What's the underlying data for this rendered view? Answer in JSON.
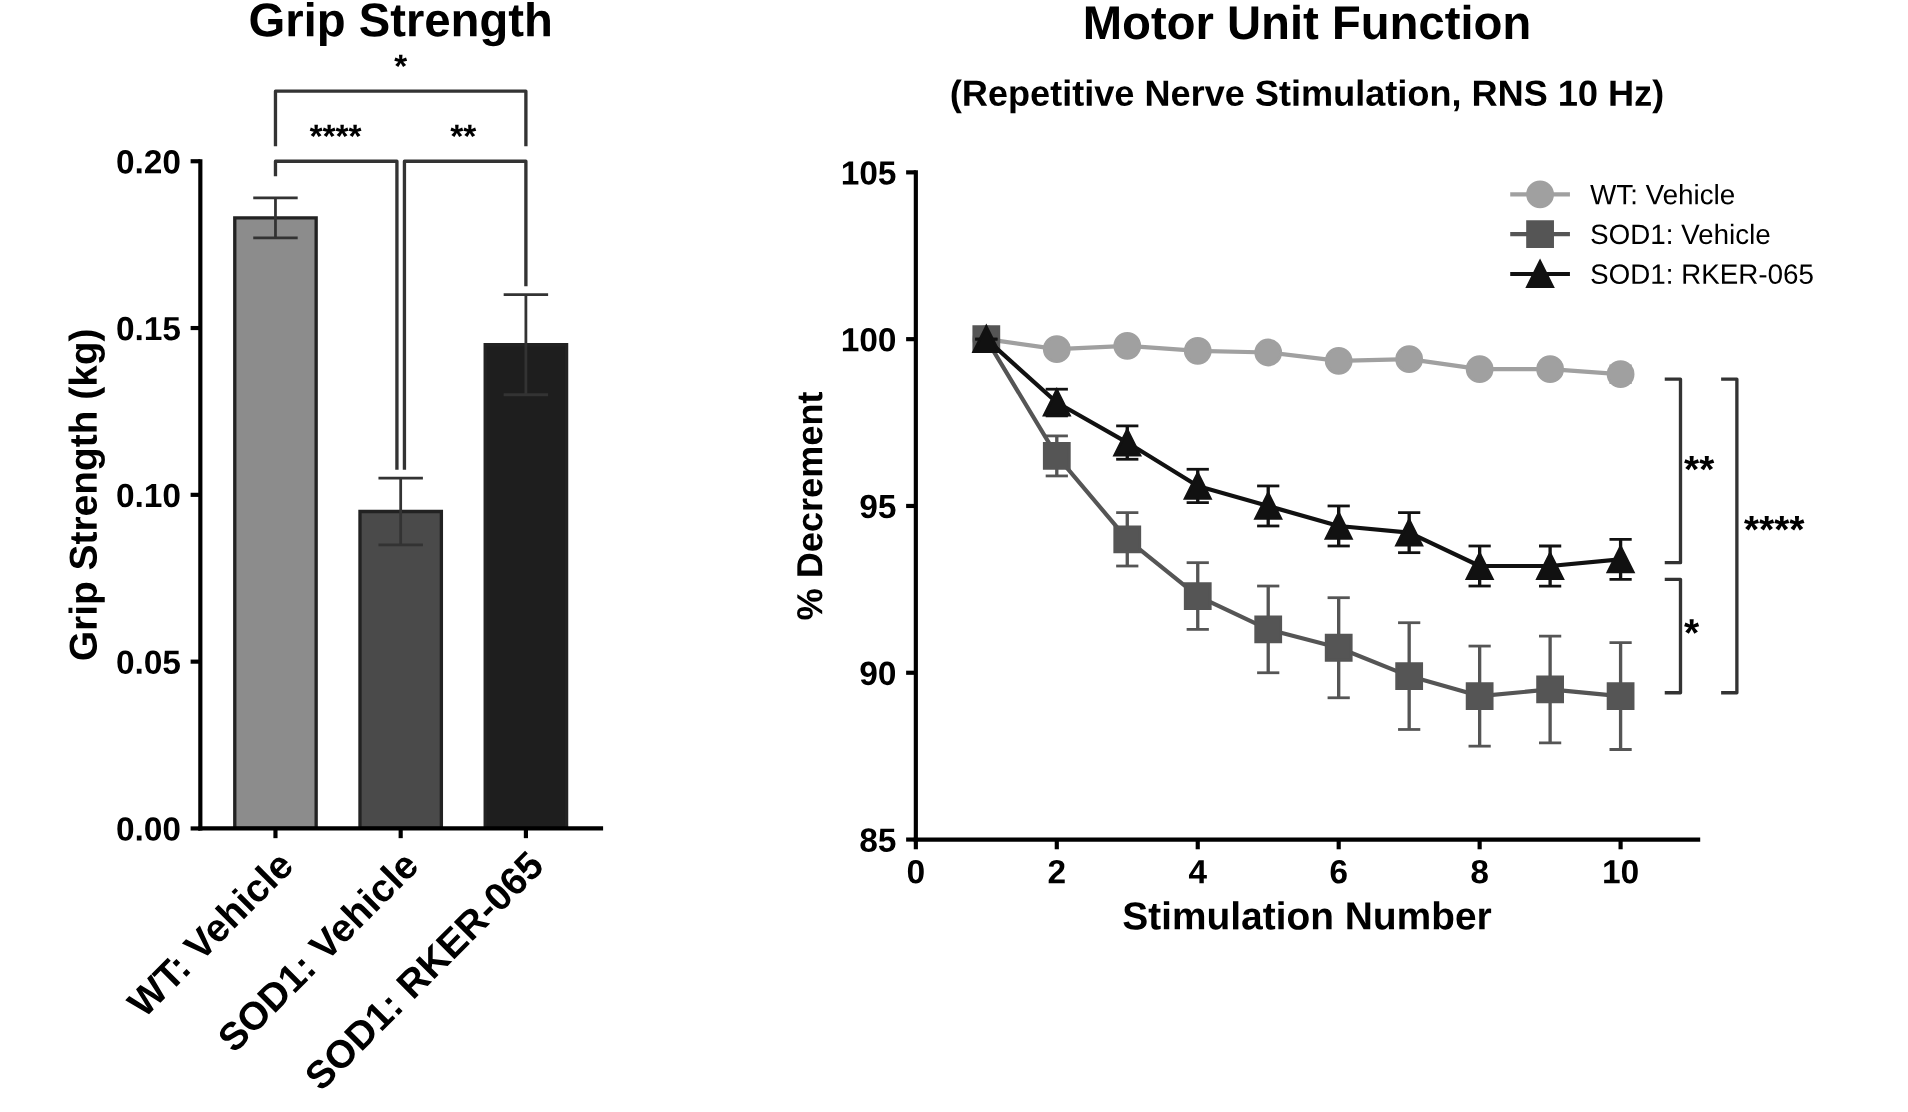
{
  "chart_data": [
    {
      "type": "bar",
      "title": "Grip Strength",
      "ylabel": "Grip Strength (kg)",
      "categories": [
        "WT: Vehicle",
        "SOD1: Vehicle",
        "SOD1: RKER-065"
      ],
      "values": [
        0.183,
        0.095,
        0.145
      ],
      "errors": [
        0.006,
        0.01,
        0.015
      ],
      "colors": [
        "#8c8c8c",
        "#4a4a4a",
        "#1e1e1e"
      ],
      "ylim": [
        0,
        0.2
      ],
      "yticks": [
        {
          "value": 0,
          "label": "0.00"
        },
        {
          "value": 0.05,
          "label": "0.05"
        },
        {
          "value": 0.1,
          "label": "0.10"
        },
        {
          "value": 0.15,
          "label": "0.15"
        },
        {
          "value": 0.2,
          "label": "0.20"
        }
      ],
      "annotations": [
        "*",
        "****",
        "**"
      ],
      "grid": false
    },
    {
      "type": "line",
      "title": "Motor Unit Function",
      "subtitle": "(Repetitive Nerve Stimulation, RNS 10 Hz)",
      "xlabel": "Stimulation Number",
      "ylabel": "% Decrement",
      "x": [
        1,
        2,
        3,
        4,
        5,
        6,
        7,
        8,
        9,
        10
      ],
      "series": [
        {
          "name": "WT: Vehicle",
          "color": "#a0a0a0",
          "marker": "circle",
          "values": [
            100,
            99.7,
            99.8,
            99.65,
            99.6,
            99.35,
            99.4,
            99.1,
            99.1,
            98.95
          ],
          "errors": [
            null,
            0.15,
            0.15,
            0.15,
            0.15,
            0.15,
            0.15,
            0.2,
            0.2,
            0.25
          ]
        },
        {
          "name": "SOD1: Vehicle",
          "color": "#555555",
          "marker": "square",
          "values": [
            100,
            96.5,
            94.0,
            92.3,
            91.3,
            90.75,
            89.9,
            89.3,
            89.5,
            89.3
          ],
          "errors": [
            null,
            0.6,
            0.8,
            1.0,
            1.3,
            1.5,
            1.6,
            1.5,
            1.6,
            1.6
          ]
        },
        {
          "name": "SOD1: RKER-065",
          "color": "#111111",
          "marker": "triangle",
          "values": [
            100,
            98.1,
            96.9,
            95.6,
            95.0,
            94.4,
            94.2,
            93.2,
            93.2,
            93.4
          ],
          "errors": [
            null,
            0.4,
            0.5,
            0.5,
            0.6,
            0.6,
            0.6,
            0.6,
            0.6,
            0.6
          ]
        }
      ],
      "xlim": [
        0,
        11.1
      ],
      "xticks": [
        0,
        2,
        4,
        6,
        8,
        10
      ],
      "ylim": [
        85,
        105
      ],
      "yticks": [
        85,
        90,
        95,
        100,
        105
      ],
      "annotations": [
        "**",
        "*",
        "****"
      ],
      "grid": false,
      "legend": "top right"
    }
  ]
}
